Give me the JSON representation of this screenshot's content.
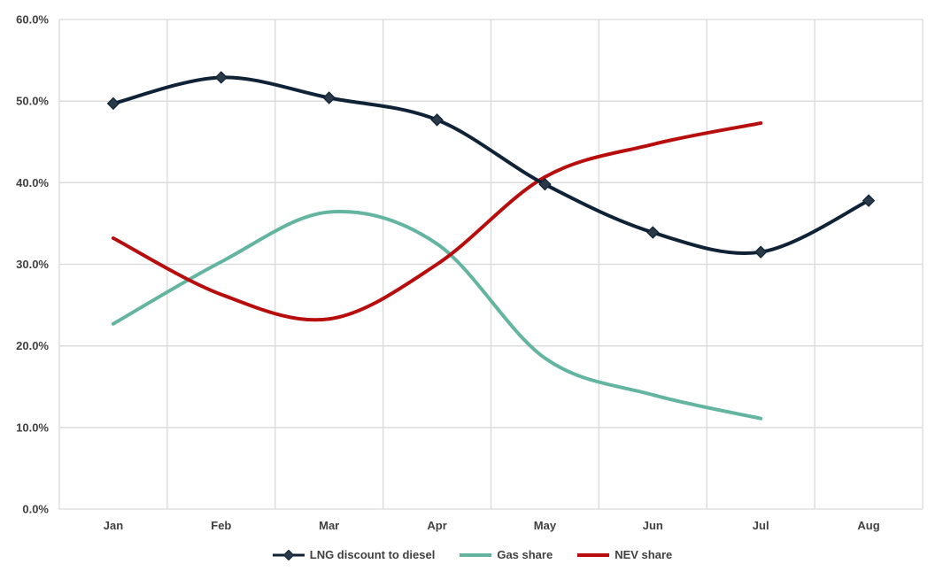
{
  "chart_data": {
    "type": "line",
    "title": "",
    "xlabel": "",
    "ylabel": "",
    "categories": [
      "Jan",
      "Feb",
      "Mar",
      "Apr",
      "May",
      "Jun",
      "Jul",
      "Aug"
    ],
    "ylim": [
      0,
      60
    ],
    "yticks": [
      0,
      10,
      20,
      30,
      40,
      50,
      60
    ],
    "ytick_labels": [
      "0.0%",
      "10.0%",
      "20.0%",
      "30.0%",
      "40.0%",
      "50.0%",
      "60.0%"
    ],
    "grid": true,
    "smooth": true,
    "legend_position": "bottom",
    "series": [
      {
        "name": "LNG discount to diesel",
        "values": [
          49.7,
          52.9,
          50.4,
          47.7,
          39.8,
          33.9,
          31.5,
          37.8
        ],
        "color": "#0f2236",
        "marker": "diamond"
      },
      {
        "name": "Gas share",
        "values": [
          22.7,
          30.3,
          36.4,
          32.5,
          18.5,
          14.0,
          11.1,
          null
        ],
        "color": "#63b5a0",
        "marker": "none"
      },
      {
        "name": "NEV share",
        "values": [
          33.2,
          26.3,
          23.3,
          30.0,
          40.7,
          44.7,
          47.3,
          null
        ],
        "color": "#b80d0d",
        "marker": "none"
      }
    ]
  }
}
